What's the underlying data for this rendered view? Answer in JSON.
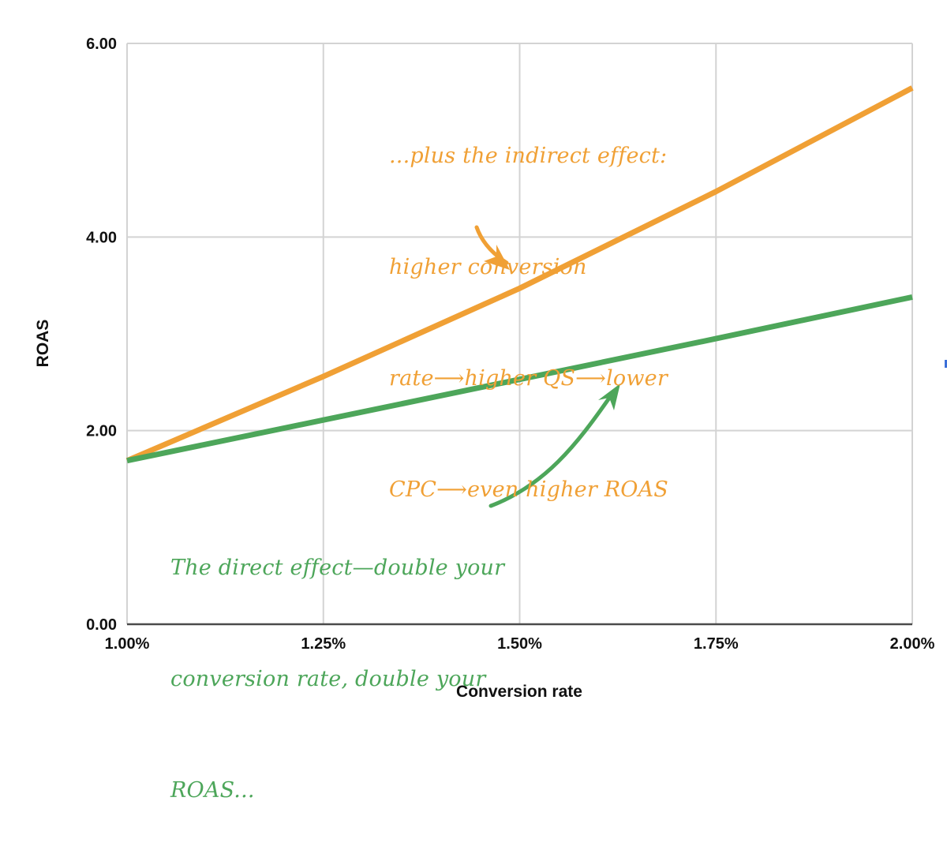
{
  "chart_data": {
    "type": "line",
    "title": "",
    "xlabel": "Conversion rate",
    "ylabel": "ROAS",
    "x_ticks": [
      "1.00%",
      "1.25%",
      "1.50%",
      "1.75%",
      "2.00%"
    ],
    "y_ticks": [
      "0.00",
      "2.00",
      "4.00",
      "6.00"
    ],
    "xlim": [
      1.0,
      2.0
    ],
    "ylim": [
      0,
      6
    ],
    "grid": true,
    "legend": "none",
    "x": [
      1.0,
      1.25,
      1.5,
      1.75,
      2.0
    ],
    "series": [
      {
        "name": "Indirect effect (higher QS, lower CPC)",
        "color": "#f0a035",
        "values": [
          1.69,
          2.56,
          3.47,
          4.47,
          5.54
        ]
      },
      {
        "name": "Direct effect",
        "color": "#4da65a",
        "values": [
          1.69,
          2.11,
          2.53,
          2.95,
          3.38
        ]
      }
    ],
    "annotations": [
      {
        "id": "indirect",
        "color": "#f0a035",
        "lines": [
          "...plus the indirect effect:",
          "higher conversion",
          "rate⟶higher QS⟶lower",
          "CPC⟶even higher ROAS"
        ]
      },
      {
        "id": "direct",
        "color": "#4da65a",
        "lines": [
          "The direct effect—double your",
          "conversion rate, double your",
          "ROAS..."
        ]
      }
    ]
  },
  "colors": {
    "gridline": "#d3d3d3",
    "axis": "#4a4a4a",
    "orange": "#f0a035",
    "green": "#4da65a"
  }
}
